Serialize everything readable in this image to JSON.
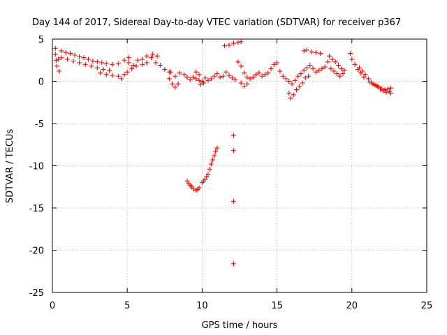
{
  "chart_data": {
    "type": "scatter",
    "title": "Day 144 of 2017, Sidereal Day-to-day VTEC variation (SDTVAR) for receiver p367",
    "xlabel": "GPS time / hours",
    "ylabel": "SDTVAR / TECUs",
    "xlim": [
      0,
      25
    ],
    "ylim": [
      -25,
      5
    ],
    "xticks": [
      0,
      5,
      10,
      15,
      20,
      25
    ],
    "yticks": [
      5,
      0,
      -5,
      -10,
      -15,
      -20,
      -25
    ],
    "xtick_labels": [
      "0",
      "5",
      "10",
      "15",
      "20",
      "25"
    ],
    "ytick_labels": [
      "5",
      "0",
      "-5",
      "-10",
      "-15",
      "-20",
      "-25"
    ],
    "grid": true,
    "marker": "+",
    "series": [
      {
        "name": "SDTVAR",
        "color": "#ff0000",
        "points": [
          [
            0.2,
            3.9
          ],
          [
            0.2,
            3.2
          ],
          [
            0.25,
            2.5
          ],
          [
            0.3,
            1.8
          ],
          [
            0.45,
            1.2
          ],
          [
            0.4,
            2.6
          ],
          [
            0.6,
            3.6
          ],
          [
            0.9,
            3.4
          ],
          [
            1.2,
            3.3
          ],
          [
            1.5,
            3.1
          ],
          [
            1.8,
            2.9
          ],
          [
            2.1,
            2.8
          ],
          [
            2.4,
            2.6
          ],
          [
            2.7,
            2.4
          ],
          [
            3.0,
            2.3
          ],
          [
            3.3,
            2.2
          ],
          [
            3.6,
            2.1
          ],
          [
            4.0,
            2.0
          ],
          [
            4.4,
            2.1
          ],
          [
            4.8,
            2.5
          ],
          [
            5.1,
            2.8
          ],
          [
            0.6,
            2.8
          ],
          [
            1.0,
            2.6
          ],
          [
            1.4,
            2.4
          ],
          [
            1.8,
            2.2
          ],
          [
            2.2,
            2.0
          ],
          [
            2.6,
            1.8
          ],
          [
            3.0,
            1.6
          ],
          [
            3.4,
            1.4
          ],
          [
            3.8,
            1.3
          ],
          [
            3.2,
            1.0
          ],
          [
            3.6,
            0.8
          ],
          [
            4.0,
            0.7
          ],
          [
            4.4,
            0.6
          ],
          [
            4.6,
            0.3
          ],
          [
            4.8,
            0.8
          ],
          [
            5.0,
            1.1
          ],
          [
            5.3,
            1.5
          ],
          [
            5.6,
            1.8
          ],
          [
            6.0,
            2.0
          ],
          [
            6.3,
            2.2
          ],
          [
            5.1,
            2.2
          ],
          [
            5.4,
            1.9
          ],
          [
            5.7,
            2.5
          ],
          [
            6.0,
            2.6
          ],
          [
            6.3,
            3.0
          ],
          [
            6.6,
            2.8
          ],
          [
            6.9,
            2.2
          ],
          [
            7.2,
            1.9
          ],
          [
            7.5,
            1.4
          ],
          [
            7.8,
            1.1
          ],
          [
            6.7,
            3.2
          ],
          [
            7.0,
            3.0
          ],
          [
            7.9,
            1.1
          ],
          [
            8.2,
            0.6
          ],
          [
            8.5,
            1.0
          ],
          [
            8.8,
            0.8
          ],
          [
            9.0,
            0.5
          ],
          [
            7.8,
            0.3
          ],
          [
            8.0,
            -0.3
          ],
          [
            8.2,
            -0.7
          ],
          [
            8.4,
            -0.3
          ],
          [
            9.2,
            0.2
          ],
          [
            9.4,
            0.5
          ],
          [
            9.6,
            0.3
          ],
          [
            9.8,
            0.1
          ],
          [
            10.0,
            0.0
          ],
          [
            10.2,
            0.4
          ],
          [
            10.4,
            0.1
          ],
          [
            10.6,
            0.3
          ],
          [
            10.8,
            0.6
          ],
          [
            11.0,
            0.9
          ],
          [
            11.2,
            0.5
          ],
          [
            9.6,
            1.1
          ],
          [
            9.8,
            0.8
          ],
          [
            9.9,
            -0.4
          ],
          [
            10.1,
            -0.2
          ],
          [
            11.4,
            0.6
          ],
          [
            11.6,
            1.1
          ],
          [
            11.8,
            0.7
          ],
          [
            12.0,
            0.4
          ],
          [
            12.2,
            0.2
          ],
          [
            11.5,
            4.2
          ],
          [
            11.8,
            4.3
          ],
          [
            12.1,
            4.5
          ],
          [
            12.4,
            4.6
          ],
          [
            12.6,
            4.7
          ],
          [
            12.4,
            2.3
          ],
          [
            12.6,
            1.8
          ],
          [
            12.8,
            1.0
          ],
          [
            13.0,
            0.5
          ],
          [
            13.2,
            0.3
          ],
          [
            12.6,
            -0.2
          ],
          [
            12.8,
            -0.6
          ],
          [
            13.0,
            -0.3
          ],
          [
            13.4,
            0.5
          ],
          [
            13.6,
            0.8
          ],
          [
            13.8,
            1.0
          ],
          [
            14.0,
            0.6
          ],
          [
            14.2,
            0.8
          ],
          [
            14.4,
            1.0
          ],
          [
            14.6,
            1.5
          ],
          [
            14.8,
            2.0
          ],
          [
            15.0,
            2.2
          ],
          [
            15.2,
            1.2
          ],
          [
            15.4,
            0.6
          ],
          [
            15.6,
            0.3
          ],
          [
            15.8,
            0.0
          ],
          [
            16.0,
            -0.3
          ],
          [
            16.2,
            0.1
          ],
          [
            16.4,
            0.6
          ],
          [
            15.8,
            -1.4
          ],
          [
            15.9,
            -2.0
          ],
          [
            16.1,
            -1.6
          ],
          [
            16.3,
            -1.0
          ],
          [
            16.5,
            -0.6
          ],
          [
            16.7,
            -0.2
          ],
          [
            16.9,
            0.4
          ],
          [
            17.1,
            0.6
          ],
          [
            16.6,
            0.9
          ],
          [
            16.8,
            1.3
          ],
          [
            17.0,
            1.6
          ],
          [
            17.2,
            1.9
          ],
          [
            17.4,
            1.5
          ],
          [
            17.6,
            1.1
          ],
          [
            17.8,
            1.3
          ],
          [
            18.0,
            1.5
          ],
          [
            18.2,
            1.7
          ],
          [
            16.8,
            3.6
          ],
          [
            17.0,
            3.7
          ],
          [
            17.3,
            3.5
          ],
          [
            17.6,
            3.4
          ],
          [
            17.9,
            3.3
          ],
          [
            18.4,
            2.3
          ],
          [
            18.6,
            1.5
          ],
          [
            18.8,
            1.2
          ],
          [
            19.0,
            0.9
          ],
          [
            19.2,
            0.6
          ],
          [
            19.4,
            0.9
          ],
          [
            18.5,
            3.0
          ],
          [
            18.7,
            2.6
          ],
          [
            18.9,
            2.3
          ],
          [
            19.1,
            1.9
          ],
          [
            19.3,
            1.5
          ],
          [
            19.5,
            1.3
          ],
          [
            19.9,
            3.3
          ],
          [
            20.0,
            2.6
          ],
          [
            20.2,
            2.0
          ],
          [
            20.4,
            1.4
          ],
          [
            20.6,
            1.0
          ],
          [
            20.8,
            0.5
          ],
          [
            20.5,
            1.6
          ],
          [
            20.7,
            1.2
          ],
          [
            20.9,
            0.8
          ],
          [
            21.1,
            0.3
          ],
          [
            21.3,
            -0.1
          ],
          [
            21.5,
            -0.4
          ],
          [
            21.7,
            -0.6
          ],
          [
            21.9,
            -0.9
          ],
          [
            22.1,
            -1.1
          ],
          [
            22.3,
            -1.3
          ],
          [
            22.5,
            -1.2
          ],
          [
            22.6,
            -0.8
          ],
          [
            22.6,
            -1.4
          ],
          [
            21.2,
            -0.1
          ],
          [
            21.4,
            -0.3
          ],
          [
            21.6,
            -0.5
          ],
          [
            21.8,
            -0.7
          ],
          [
            22.0,
            -0.9
          ],
          [
            22.2,
            -1.0
          ],
          [
            22.4,
            -0.9
          ],
          [
            9.0,
            -11.8
          ],
          [
            9.2,
            -12.3
          ],
          [
            9.4,
            -12.7
          ],
          [
            9.6,
            -12.9
          ],
          [
            9.8,
            -12.6
          ],
          [
            10.0,
            -12.0
          ],
          [
            10.2,
            -11.6
          ],
          [
            10.4,
            -11.0
          ],
          [
            10.5,
            -10.4
          ],
          [
            10.6,
            -9.8
          ],
          [
            10.7,
            -9.3
          ],
          [
            10.8,
            -8.8
          ],
          [
            10.9,
            -8.3
          ],
          [
            11.0,
            -7.9
          ],
          [
            9.1,
            -12.1
          ],
          [
            9.3,
            -12.5
          ],
          [
            9.7,
            -12.8
          ],
          [
            10.1,
            -11.8
          ],
          [
            10.3,
            -11.3
          ],
          [
            12.1,
            -6.4
          ],
          [
            12.1,
            -8.2
          ],
          [
            12.1,
            -14.2
          ],
          [
            12.1,
            -21.6
          ]
        ]
      }
    ]
  }
}
